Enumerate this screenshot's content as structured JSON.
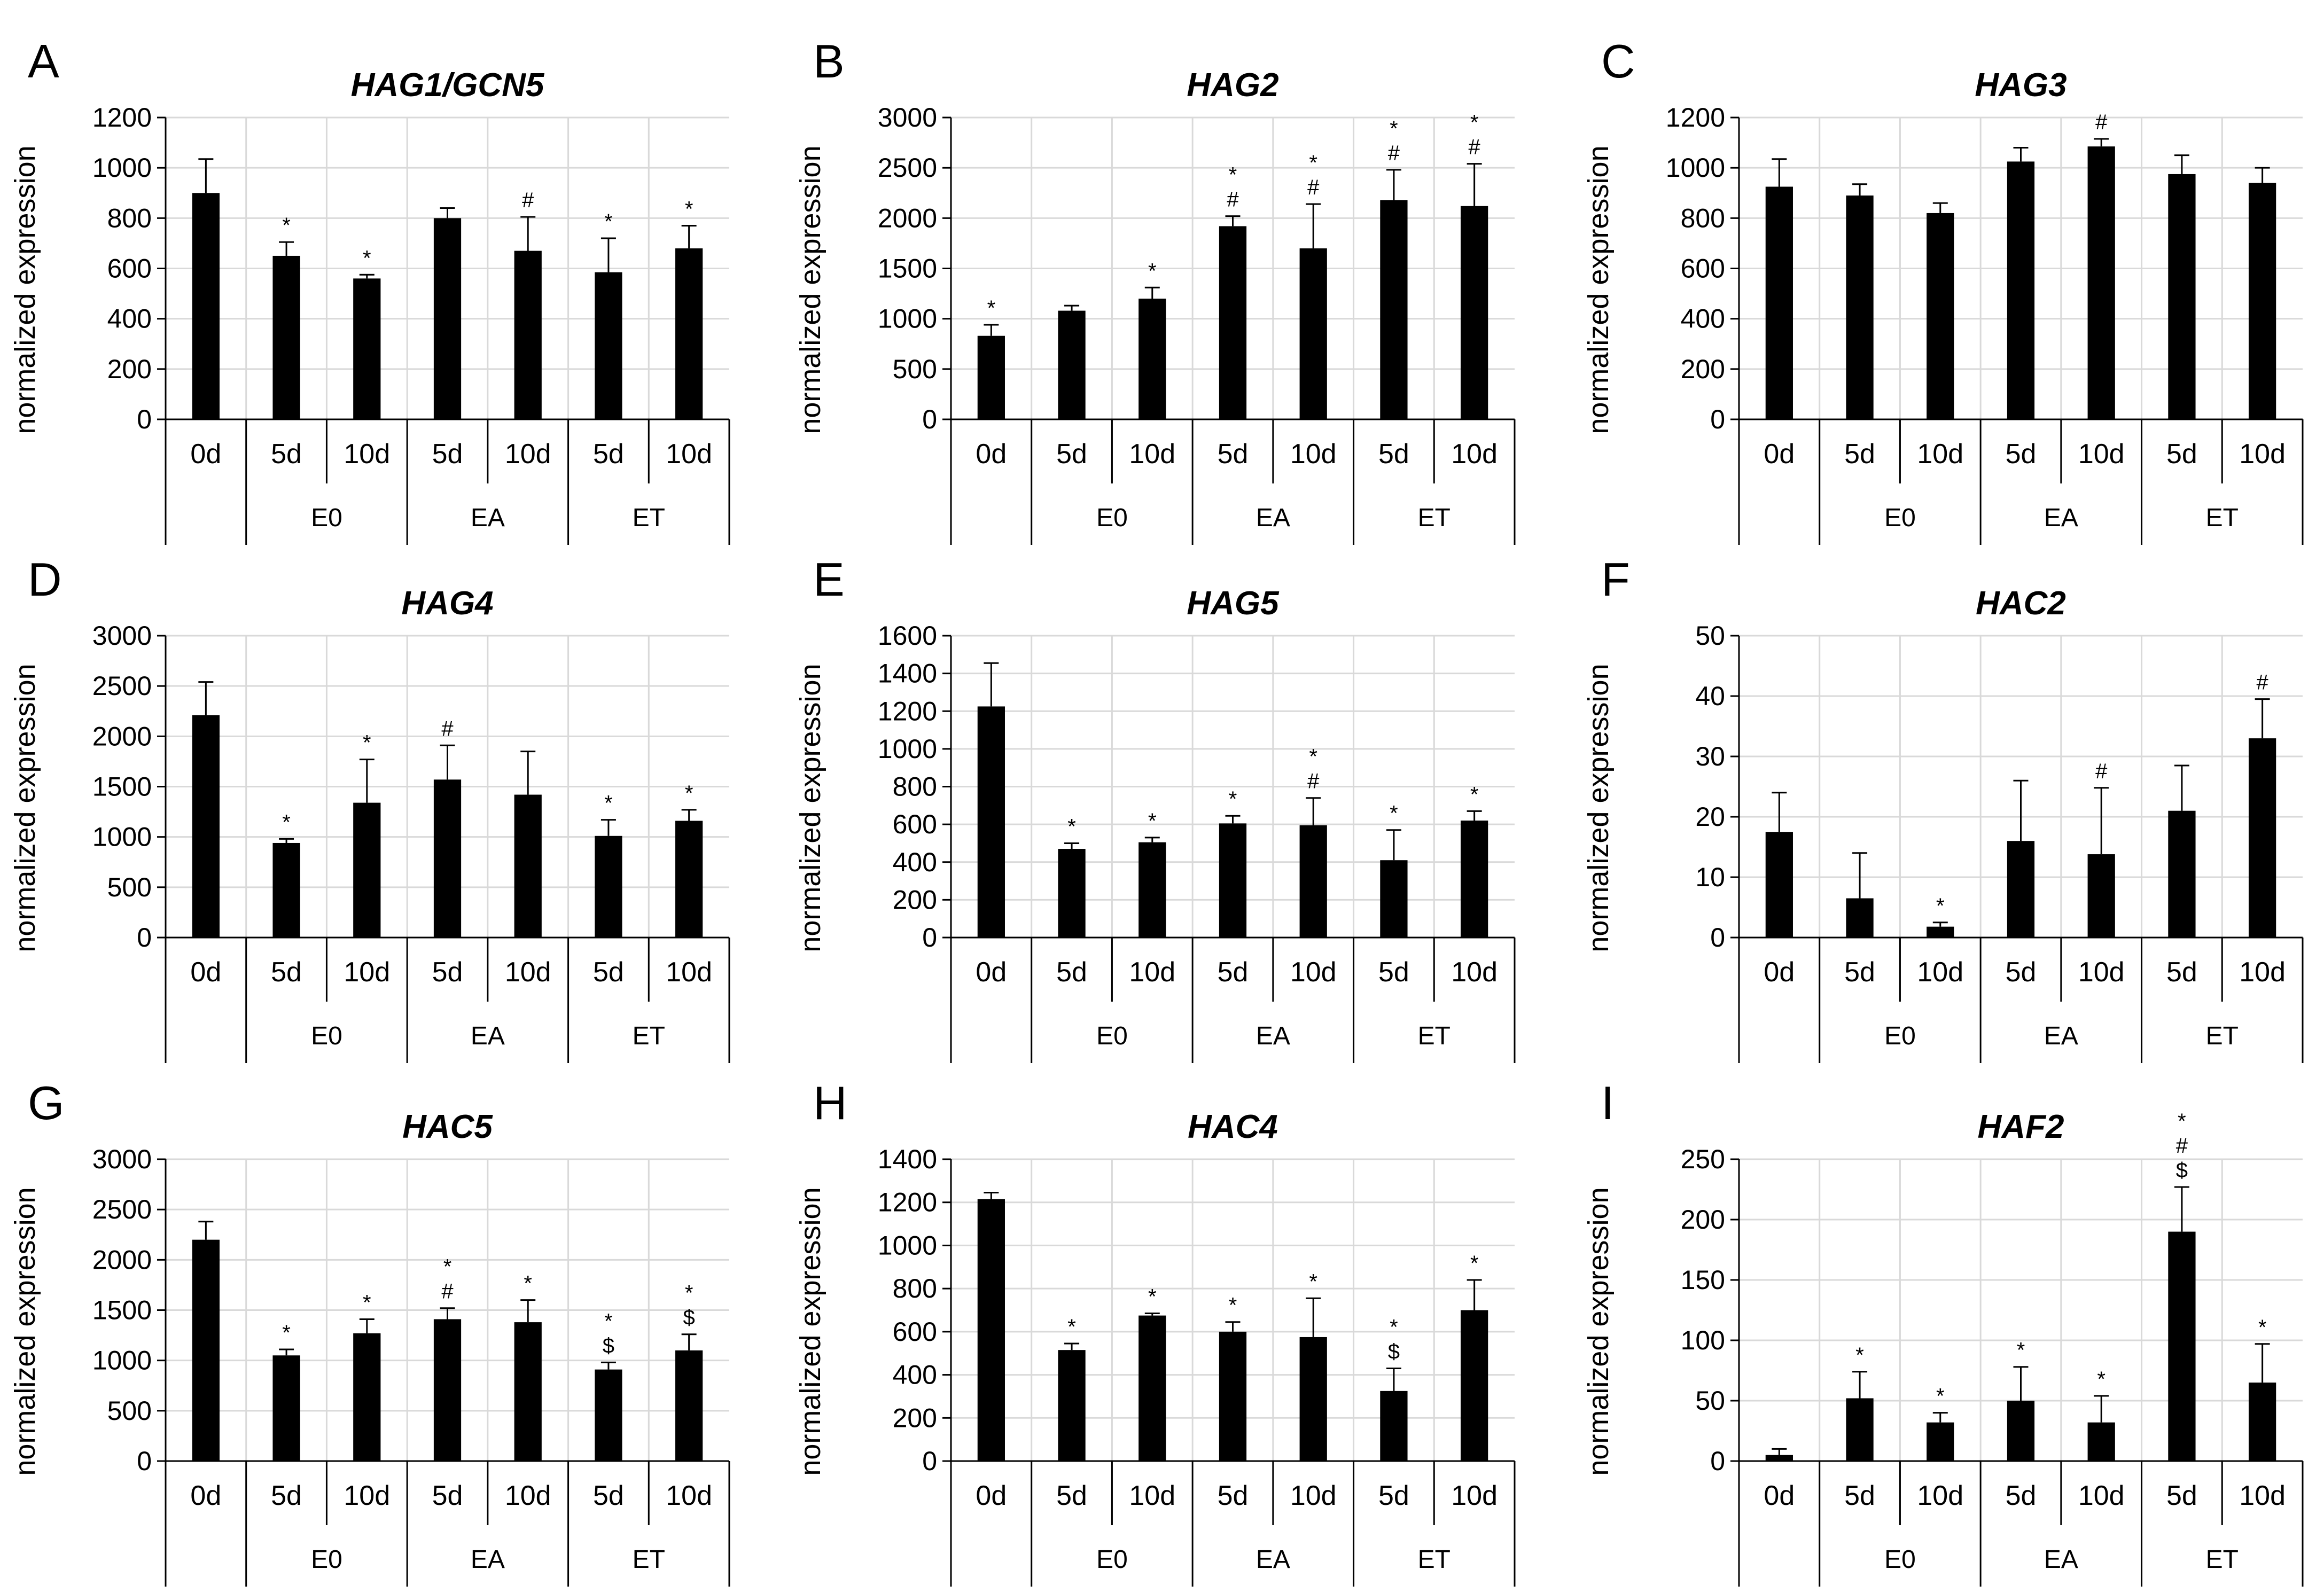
{
  "figure": {
    "chart_data": [
      {
        "panel": "A",
        "type": "bar",
        "title": "HAG1/GCN5",
        "ylabel": "normalized expression",
        "ylim": [
          0,
          1200
        ],
        "ystep": 200,
        "categories": [
          "0d",
          "5d",
          "10d",
          "5d",
          "10d",
          "5d",
          "10d"
        ],
        "groups": [
          "E0",
          "EA",
          "ET"
        ],
        "values": [
          900,
          650,
          560,
          800,
          670,
          585,
          680
        ],
        "errors": [
          135,
          55,
          15,
          40,
          135,
          135,
          90
        ],
        "significance": [
          "",
          "*",
          "*",
          "",
          "#",
          "*",
          "*"
        ]
      },
      {
        "panel": "B",
        "type": "bar",
        "title": "HAG2",
        "ylabel": "normalized expression",
        "ylim": [
          0,
          3000
        ],
        "ystep": 500,
        "categories": [
          "0d",
          "5d",
          "10d",
          "5d",
          "10d",
          "5d",
          "10d"
        ],
        "groups": [
          "E0",
          "EA",
          "ET"
        ],
        "values": [
          830,
          1080,
          1200,
          1920,
          1700,
          2180,
          2120
        ],
        "errors": [
          110,
          50,
          110,
          100,
          440,
          300,
          420
        ],
        "significance": [
          "*",
          "",
          "*",
          "*\n#",
          "*\n#",
          "*\n#",
          "*\n#"
        ]
      },
      {
        "panel": "C",
        "type": "bar",
        "title": "HAG3",
        "ylabel": "normalized expression",
        "ylim": [
          0,
          1200
        ],
        "ystep": 200,
        "categories": [
          "0d",
          "5d",
          "10d",
          "5d",
          "10d",
          "5d",
          "10d"
        ],
        "groups": [
          "E0",
          "EA",
          "ET"
        ],
        "values": [
          925,
          890,
          820,
          1025,
          1085,
          975,
          940
        ],
        "errors": [
          110,
          45,
          40,
          55,
          30,
          75,
          60
        ],
        "significance": [
          "",
          "",
          "",
          "",
          "#",
          "",
          ""
        ]
      },
      {
        "panel": "D",
        "type": "bar",
        "title": "HAG4",
        "ylabel": "normalized expression",
        "ylim": [
          0,
          3000
        ],
        "ystep": 500,
        "categories": [
          "0d",
          "5d",
          "10d",
          "5d",
          "10d",
          "5d",
          "10d"
        ],
        "groups": [
          "E0",
          "EA",
          "ET"
        ],
        "values": [
          2210,
          940,
          1340,
          1570,
          1420,
          1010,
          1160
        ],
        "errors": [
          330,
          40,
          430,
          340,
          430,
          160,
          110
        ],
        "significance": [
          "",
          "*",
          "*",
          "#",
          "",
          "*",
          "*"
        ]
      },
      {
        "panel": "E",
        "type": "bar",
        "title": "HAG5",
        "ylabel": "normalized expression",
        "ylim": [
          0,
          1600
        ],
        "ystep": 200,
        "categories": [
          "0d",
          "5d",
          "10d",
          "5d",
          "10d",
          "5d",
          "10d"
        ],
        "groups": [
          "E0",
          "EA",
          "ET"
        ],
        "values": [
          1225,
          470,
          505,
          605,
          595,
          410,
          620
        ],
        "errors": [
          230,
          30,
          25,
          40,
          145,
          160,
          50
        ],
        "significance": [
          "",
          "*",
          "*",
          "*",
          "*\n#",
          "*",
          "*"
        ]
      },
      {
        "panel": "F",
        "type": "bar",
        "title": "HAC2",
        "ylabel": "normalized expression",
        "ylim": [
          0,
          50
        ],
        "ystep": 10,
        "categories": [
          "0d",
          "5d",
          "10d",
          "5d",
          "10d",
          "5d",
          "10d"
        ],
        "groups": [
          "E0",
          "EA",
          "ET"
        ],
        "values": [
          17.5,
          6.5,
          1.8,
          16,
          13.8,
          21,
          33
        ],
        "errors": [
          6.5,
          7.5,
          0.7,
          10,
          11,
          7.5,
          6.5
        ],
        "significance": [
          "",
          "",
          "*",
          "",
          "#",
          "",
          "#"
        ]
      },
      {
        "panel": "G",
        "type": "bar",
        "title": "HAC5",
        "ylabel": "normalized expression",
        "ylim": [
          0,
          3000
        ],
        "ystep": 500,
        "categories": [
          "0d",
          "5d",
          "10d",
          "5d",
          "10d",
          "5d",
          "10d"
        ],
        "groups": [
          "E0",
          "EA",
          "ET"
        ],
        "values": [
          2200,
          1050,
          1270,
          1410,
          1380,
          910,
          1100
        ],
        "errors": [
          180,
          60,
          140,
          110,
          220,
          70,
          160
        ],
        "significance": [
          "",
          "*",
          "*",
          "*\n#",
          "*",
          "*\n$",
          "*\n$"
        ]
      },
      {
        "panel": "H",
        "type": "bar",
        "title": "HAC4",
        "ylabel": "normalized expression",
        "ylim": [
          0,
          1400
        ],
        "ystep": 200,
        "categories": [
          "0d",
          "5d",
          "10d",
          "5d",
          "10d",
          "5d",
          "10d"
        ],
        "groups": [
          "E0",
          "EA",
          "ET"
        ],
        "values": [
          1215,
          515,
          675,
          600,
          575,
          325,
          700
        ],
        "errors": [
          30,
          30,
          10,
          45,
          180,
          105,
          140
        ],
        "significance": [
          "",
          "*",
          "*",
          "*",
          "*",
          "*\n$",
          "*"
        ]
      },
      {
        "panel": "I",
        "type": "bar",
        "title": "HAF2",
        "ylabel": "normalized expression",
        "ylim": [
          0,
          250
        ],
        "ystep": 50,
        "categories": [
          "0d",
          "5d",
          "10d",
          "5d",
          "10d",
          "5d",
          "10d"
        ],
        "groups": [
          "E0",
          "EA",
          "ET"
        ],
        "values": [
          5,
          52,
          32,
          50,
          32,
          190,
          65
        ],
        "errors": [
          5,
          22,
          8,
          28,
          22,
          37,
          32
        ],
        "significance": [
          "",
          "*",
          "*",
          "*",
          "*",
          "*\n#\n$",
          "*"
        ]
      }
    ]
  }
}
